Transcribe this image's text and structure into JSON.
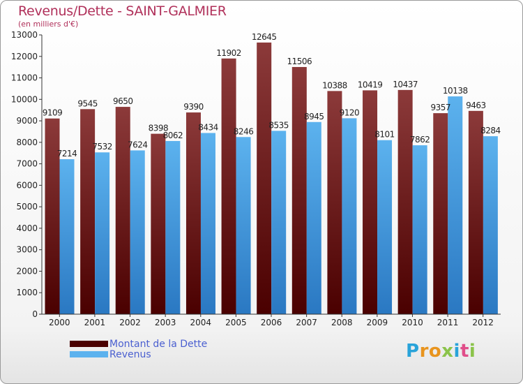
{
  "colors": {
    "debt_dark": "#4a0000",
    "debt_light": "#8c3a3a",
    "revenue_dark": "#2a78c2",
    "revenue_light": "#5cb2ee",
    "title": "#b0305a",
    "legend_text": "#4a5fd0"
  },
  "logo": {
    "letters": [
      {
        "ch": "P",
        "color": "#29a3d9"
      },
      {
        "ch": "r",
        "color": "#e8941e"
      },
      {
        "ch": "o",
        "color": "#e8941e"
      },
      {
        "ch": "x",
        "color": "#8bc34a"
      },
      {
        "ch": "i",
        "color": "#29a3d9"
      },
      {
        "ch": "t",
        "color": "#e04e8a"
      },
      {
        "ch": "i",
        "color": "#8bc34a"
      }
    ]
  },
  "chart_data": {
    "type": "bar",
    "title": "Revenus/Dette - SAINT-GALMIER",
    "subtitle": "(en milliers d'€)",
    "xlabel": "",
    "ylabel": "",
    "ylim": [
      0,
      13000
    ],
    "yticks": [
      "0",
      "1000",
      "2000",
      "3000",
      "4000",
      "5000",
      "6000",
      "7000",
      "8000",
      "9000",
      "10000",
      "11000",
      "12000",
      "13000"
    ],
    "categories": [
      "2000",
      "2001",
      "2002",
      "2003",
      "2004",
      "2005",
      "2006",
      "2007",
      "2008",
      "2009",
      "2010",
      "2011",
      "2012"
    ],
    "series": [
      {
        "name": "Montant de la Dette",
        "values": [
          9109,
          9545,
          9650,
          8398,
          9390,
          11902,
          12645,
          11506,
          10388,
          10419,
          10437,
          9357,
          9463
        ]
      },
      {
        "name": "Revenus",
        "values": [
          7214,
          7532,
          7624,
          8062,
          8434,
          8246,
          8535,
          8945,
          9120,
          8101,
          7862,
          10138,
          8284
        ]
      }
    ],
    "legend": [
      "Montant de la Dette",
      "Revenus"
    ],
    "legend_position": "bottom-left",
    "grid": false
  }
}
